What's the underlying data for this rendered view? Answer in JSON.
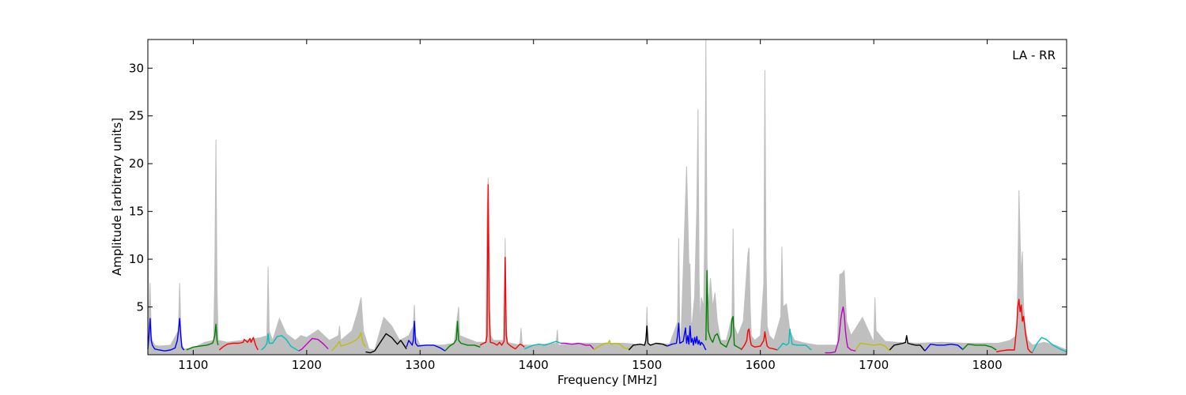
{
  "chart_data": {
    "type": "line",
    "title": "",
    "xlabel": "Frequency [MHz]",
    "ylabel": "Amplitude [arbitrary units]",
    "xlim": [
      1060,
      1870
    ],
    "ylim": [
      0,
      33
    ],
    "xticks": [
      1100,
      1200,
      1300,
      1400,
      1500,
      1600,
      1700,
      1800
    ],
    "yticks": [
      5,
      10,
      15,
      20,
      25,
      30
    ],
    "grid": false,
    "annotation": "LA - RR",
    "envelope": {
      "color": "#bfbfbf",
      "x": [
        1060,
        1061,
        1062,
        1063,
        1064,
        1066,
        1070,
        1080,
        1087,
        1088,
        1089,
        1090,
        1092,
        1100,
        1110,
        1118,
        1119,
        1120,
        1121,
        1122,
        1130,
        1150,
        1160,
        1165,
        1166,
        1167,
        1170,
        1176,
        1182,
        1190,
        1195,
        1200,
        1210,
        1220,
        1228,
        1229,
        1230,
        1240,
        1245,
        1248,
        1250,
        1255,
        1260,
        1268,
        1275,
        1282,
        1290,
        1294,
        1295,
        1296,
        1300,
        1320,
        1330,
        1333,
        1334,
        1335,
        1350,
        1358,
        1359,
        1360,
        1361,
        1362,
        1365,
        1374,
        1375,
        1376,
        1377,
        1380,
        1388,
        1389,
        1390,
        1400,
        1420,
        1421,
        1422,
        1440,
        1460,
        1480,
        1499,
        1500,
        1501,
        1510,
        1520,
        1527,
        1528,
        1529,
        1530,
        1535,
        1537,
        1538,
        1539,
        1540,
        1542,
        1544,
        1545,
        1546,
        1547,
        1548,
        1550,
        1551,
        1552,
        1553,
        1554,
        1556,
        1558,
        1560,
        1562,
        1565,
        1570,
        1575,
        1576,
        1577,
        1580,
        1585,
        1589,
        1590,
        1591,
        1592,
        1595,
        1600,
        1603,
        1604,
        1605,
        1606,
        1608,
        1612,
        1618,
        1619,
        1620,
        1623,
        1626,
        1630,
        1640,
        1650,
        1660,
        1668,
        1670,
        1672,
        1674,
        1676,
        1680,
        1690,
        1700,
        1701,
        1702,
        1710,
        1720,
        1740,
        1760,
        1780,
        1800,
        1810,
        1820,
        1826,
        1827,
        1828,
        1829,
        1830,
        1831,
        1832,
        1834,
        1836,
        1840,
        1850,
        1860,
        1870
      ],
      "y": [
        16,
        2,
        7.5,
        2,
        1.5,
        1.0,
        0.9,
        1.0,
        2.5,
        7.5,
        3,
        1.0,
        0.6,
        0.7,
        1.3,
        1.5,
        8,
        22.5,
        7,
        1.5,
        1.3,
        1.6,
        1.8,
        2,
        9.2,
        2.5,
        1.5,
        3.8,
        2.2,
        1.5,
        2.0,
        1.8,
        2.6,
        1.5,
        2.0,
        3.0,
        1.5,
        2.5,
        4.5,
        6,
        2.5,
        0.6,
        0.5,
        3.9,
        3.0,
        1.5,
        2.0,
        3.0,
        5.2,
        2.0,
        1.0,
        1.0,
        1.2,
        4.0,
        5.0,
        2.0,
        1.3,
        1.3,
        14,
        18.5,
        5,
        2.0,
        1.5,
        1.5,
        12.2,
        3.0,
        1.3,
        1.2,
        1.0,
        2.8,
        1.0,
        1.0,
        1.2,
        2.6,
        1.0,
        1.2,
        1.2,
        1.2,
        1.0,
        5.0,
        1.0,
        1.2,
        1.1,
        3.4,
        12.2,
        2.0,
        1.5,
        19.7,
        9.5,
        9.5,
        3.0,
        3.5,
        6.0,
        15.5,
        25.7,
        8.0,
        3.0,
        6.0,
        5.0,
        13.0,
        33,
        10.0,
        4.5,
        8.0,
        5.0,
        6.5,
        3.5,
        1.5,
        1.5,
        4.0,
        13.2,
        3.0,
        2.0,
        3.5,
        10.5,
        11.2,
        5.0,
        2.0,
        1.5,
        2.0,
        7.5,
        29.8,
        10.0,
        3.0,
        2.0,
        1.5,
        4.0,
        11.3,
        5.0,
        5.3,
        2.5,
        1.5,
        1.2,
        1.0,
        1.0,
        1.0,
        8.4,
        8.5,
        8.8,
        3.5,
        2.0,
        3.9,
        1.3,
        6.0,
        2.5,
        1.4,
        1.3,
        1.2,
        1.3,
        1.2,
        1.2,
        1.2,
        1.5,
        2.0,
        8,
        17.2,
        12.3,
        8,
        10.8,
        5,
        2.5,
        1.5,
        1.0,
        1.3,
        1.0,
        0.5
      ]
    },
    "series": [
      {
        "color": "#0000ff",
        "x": [
          1060,
          1061,
          1062,
          1063,
          1064,
          1066,
          1070,
          1075,
          1080,
          1084,
          1086,
          1087,
          1088,
          1089,
          1090,
          1091,
          1092
        ],
        "y": [
          0.6,
          2,
          3.8,
          1.5,
          1.0,
          0.6,
          0.5,
          0.4,
          0.5,
          0.7,
          1.5,
          2.5,
          3.8,
          2.0,
          0.8,
          0.6,
          0.5
        ]
      },
      {
        "color": "#008000",
        "x": [
          1094,
          1100,
          1106,
          1112,
          1117,
          1118,
          1119,
          1120,
          1121,
          1122
        ],
        "y": [
          0.5,
          0.8,
          0.9,
          1.0,
          1.2,
          1.5,
          2.0,
          3.2,
          1.5,
          1.0
        ]
      },
      {
        "color": "#ff0000",
        "x": [
          1123,
          1126,
          1130,
          1135,
          1140,
          1144,
          1145,
          1148,
          1150,
          1151,
          1153,
          1155,
          1157
        ],
        "y": [
          0.5,
          0.8,
          1.1,
          1.2,
          1.2,
          1.3,
          1.6,
          1.3,
          1.7,
          1.3,
          1.8,
          1.0,
          0.5
        ]
      },
      {
        "color": "#00bfbf",
        "x": [
          1160,
          1163,
          1165,
          1166,
          1167,
          1170,
          1174,
          1178,
          1182,
          1186,
          1190,
          1193
        ],
        "y": [
          0.5,
          0.8,
          1.2,
          2.2,
          1.2,
          1.2,
          1.9,
          2.0,
          1.6,
          0.9,
          0.6,
          0.4
        ]
      },
      {
        "color": "#bf00bf",
        "x": [
          1193,
          1196,
          1200,
          1205,
          1210,
          1215,
          1219
        ],
        "y": [
          0.4,
          0.6,
          1.1,
          1.7,
          1.6,
          1.1,
          0.6
        ]
      },
      {
        "color": "#bfbf00",
        "x": [
          1222,
          1226,
          1229,
          1230,
          1233,
          1238,
          1243,
          1246,
          1248,
          1249,
          1250,
          1252
        ],
        "y": [
          0.4,
          0.9,
          1.4,
          0.9,
          1.0,
          1.2,
          1.5,
          1.8,
          2.3,
          1.6,
          1.2,
          0.8
        ]
      },
      {
        "color": "#000000",
        "x": [
          1252,
          1256,
          1260,
          1265,
          1270,
          1275,
          1280,
          1283,
          1288
        ],
        "y": [
          0.3,
          0.2,
          0.4,
          1.3,
          2.2,
          1.8,
          1.1,
          1.5,
          0.6
        ]
      },
      {
        "color": "#0000ff",
        "x": [
          1288,
          1290,
          1293,
          1294,
          1295,
          1296,
          1298,
          1305,
          1312,
          1318,
          1322
        ],
        "y": [
          0.8,
          1.5,
          1.0,
          1.5,
          3.5,
          1.2,
          0.9,
          1.0,
          1.0,
          0.7,
          0.4
        ]
      },
      {
        "color": "#008000",
        "x": [
          1322,
          1326,
          1330,
          1332,
          1333,
          1334,
          1336,
          1342,
          1348,
          1353
        ],
        "y": [
          0.4,
          0.9,
          1.2,
          1.6,
          3.5,
          1.5,
          1.2,
          1.0,
          1.0,
          0.8
        ]
      },
      {
        "color": "#ff0000",
        "x": [
          1353,
          1356,
          1358,
          1359,
          1360,
          1361,
          1362,
          1365,
          1368,
          1370,
          1372,
          1374,
          1375,
          1376,
          1377,
          1380,
          1384,
          1388,
          1390,
          1392
        ],
        "y": [
          1.0,
          1.2,
          1.3,
          2,
          17.8,
          5,
          1.3,
          1.2,
          1.0,
          1.3,
          1.0,
          1.4,
          10.2,
          2.0,
          1.2,
          0.9,
          0.6,
          1.1,
          1.0,
          0.8
        ]
      },
      {
        "color": "#00bfbf",
        "x": [
          1392,
          1396,
          1400,
          1405,
          1410,
          1415,
          1420,
          1424
        ],
        "y": [
          0.6,
          0.8,
          1.0,
          1.1,
          1.0,
          1.2,
          1.4,
          1.2
        ]
      },
      {
        "color": "#bf00bf",
        "x": [
          1424,
          1428,
          1434,
          1440,
          1446,
          1450,
          1453
        ],
        "y": [
          1.2,
          1.2,
          1.1,
          1.2,
          1.0,
          1.0,
          0.6
        ]
      },
      {
        "color": "#bfbf00",
        "x": [
          1453,
          1458,
          1463,
          1466,
          1467,
          1468,
          1472,
          1476,
          1480,
          1484
        ],
        "y": [
          0.5,
          0.9,
          1.2,
          1.2,
          1.5,
          1.1,
          1.2,
          1.1,
          0.7,
          0.6
        ]
      },
      {
        "color": "#000000",
        "x": [
          1484,
          1488,
          1494,
          1498,
          1499,
          1500,
          1501,
          1503,
          1508,
          1514,
          1518
        ],
        "y": [
          0.5,
          1.0,
          1.1,
          1.0,
          1.5,
          3.0,
          1.2,
          1.0,
          1.2,
          1.1,
          0.9
        ]
      },
      {
        "color": "#0000ff",
        "x": [
          1518,
          1522,
          1526,
          1527,
          1528,
          1529,
          1532,
          1534,
          1535,
          1536,
          1537,
          1538,
          1539,
          1540,
          1541,
          1542,
          1543,
          1544,
          1545,
          1546,
          1547,
          1548,
          1550,
          1551,
          1552
        ],
        "y": [
          0.9,
          1.1,
          1.2,
          2,
          3.3,
          1.2,
          1.4,
          2.8,
          1.2,
          2.0,
          1.1,
          3.0,
          1.3,
          1.7,
          1.0,
          1.8,
          1.2,
          1.9,
          1.1,
          1.5,
          1.0,
          1.3,
          1.0,
          0.7,
          0.5
        ]
      },
      {
        "color": "#008000",
        "x": [
          1552,
          1553,
          1554,
          1556,
          1558,
          1560,
          1562,
          1565,
          1570,
          1574,
          1575,
          1576,
          1577,
          1580,
          1583
        ],
        "y": [
          1.5,
          8.8,
          2.5,
          1.7,
          1.3,
          2.0,
          2.2,
          1.2,
          0.8,
          2.0,
          3.7,
          4.0,
          1.0,
          0.8,
          0.6
        ]
      },
      {
        "color": "#ff0000",
        "x": [
          1583,
          1586,
          1588,
          1589,
          1590,
          1591,
          1592,
          1595,
          1600,
          1603,
          1604,
          1605,
          1606,
          1608,
          1612,
          1615
        ],
        "y": [
          0.5,
          1.0,
          1.5,
          2.5,
          2.7,
          1.6,
          1.0,
          0.8,
          0.9,
          1.5,
          2.4,
          1.6,
          0.9,
          0.7,
          0.6,
          0.5
        ]
      },
      {
        "color": "#00bfbf",
        "x": [
          1615,
          1618,
          1620,
          1623,
          1625,
          1626,
          1628,
          1632,
          1640,
          1645
        ],
        "y": [
          0.5,
          0.9,
          1.2,
          1.0,
          1.2,
          2.7,
          1.1,
          1.0,
          1.0,
          0.5
        ]
      },
      {
        "color": "#bf00bf",
        "x": [
          1657,
          1662,
          1666,
          1669,
          1671,
          1672,
          1673,
          1674,
          1675,
          1676,
          1677,
          1680,
          1684
        ],
        "y": [
          0.2,
          0.2,
          0.3,
          1.5,
          3.8,
          4.5,
          5.0,
          4.2,
          2.5,
          1.5,
          0.8,
          0.5,
          0.4
        ]
      },
      {
        "color": "#bfbf00",
        "x": [
          1684,
          1688,
          1694,
          1700,
          1706,
          1710,
          1714
        ],
        "y": [
          0.5,
          1.2,
          1.1,
          1.0,
          1.1,
          0.9,
          0.4
        ]
      },
      {
        "color": "#000000",
        "x": [
          1714,
          1718,
          1722,
          1726,
          1728,
          1729,
          1730,
          1733,
          1737,
          1741,
          1745
        ],
        "y": [
          0.5,
          1.0,
          1.1,
          1.2,
          1.3,
          2.0,
          1.2,
          1.1,
          1.0,
          1.0,
          0.4
        ]
      },
      {
        "color": "#0000ff",
        "x": [
          1745,
          1750,
          1756,
          1762,
          1768,
          1774,
          1778
        ],
        "y": [
          0.4,
          1.1,
          1.0,
          1.0,
          1.1,
          1.0,
          0.6
        ]
      },
      {
        "color": "#008000",
        "x": [
          1778,
          1783,
          1790,
          1798,
          1804,
          1808
        ],
        "y": [
          0.5,
          1.1,
          1.0,
          1.0,
          0.8,
          0.5
        ]
      },
      {
        "color": "#ff0000",
        "x": [
          1808,
          1812,
          1818,
          1824,
          1826,
          1827,
          1828,
          1829,
          1830,
          1831,
          1832,
          1834,
          1836,
          1838,
          1840
        ],
        "y": [
          0.3,
          0.4,
          0.5,
          0.5,
          3.0,
          5.0,
          5.8,
          4.5,
          5.2,
          3.5,
          4.0,
          2.0,
          0.6,
          0.3,
          0.2
        ]
      },
      {
        "color": "#00bfbf",
        "x": [
          1840,
          1844,
          1848,
          1852,
          1858,
          1864,
          1870
        ],
        "y": [
          0.3,
          1.2,
          1.8,
          1.6,
          1.0,
          0.6,
          0.3
        ]
      }
    ]
  }
}
